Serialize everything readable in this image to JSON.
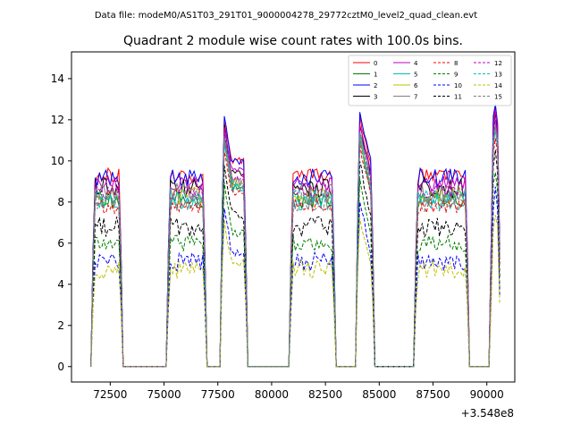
{
  "chart_data": {
    "type": "line",
    "suptitle": "Data file: modeM0/AS1T03_291T01_9000004278_29772cztM0_level2_quad_clean.evt",
    "title": "Quadrant 2 module wise count rates with 100.0s bins.",
    "xlabel": "",
    "ylabel": "",
    "x_offset_label": "+3.548e8",
    "xlim": [
      70700,
      91300
    ],
    "ylim": [
      -0.75,
      15.3
    ],
    "x_ticks": [
      72500,
      75000,
      77500,
      80000,
      82500,
      85000,
      87500,
      90000
    ],
    "x_tick_labels": [
      "72500",
      "75000",
      "77500",
      "80000",
      "82500",
      "85000",
      "87500",
      "90000"
    ],
    "y_ticks": [
      0,
      2,
      4,
      6,
      8,
      10,
      12,
      14
    ],
    "y_tick_labels": [
      "0",
      "2",
      "4",
      "6",
      "8",
      "10",
      "12",
      "14"
    ],
    "legend_position": "top-right",
    "bin_seconds": 100,
    "segments": [
      {
        "start": 71700,
        "end": 73000,
        "spike": false
      },
      {
        "start": 75200,
        "end": 76900,
        "spike": false
      },
      {
        "start": 77700,
        "end": 78800,
        "spike": true
      },
      {
        "start": 80900,
        "end": 82900,
        "spike": false
      },
      {
        "start": 84000,
        "end": 84700,
        "spike": true
      },
      {
        "start": 86700,
        "end": 89100,
        "spike": false
      },
      {
        "start": 90200,
        "end": 90600,
        "spike": true
      }
    ],
    "series": [
      {
        "name": "0",
        "color": "#ff0000",
        "dashed": false,
        "level": 9.3,
        "spike": 12.5
      },
      {
        "name": "1",
        "color": "#008000",
        "dashed": false,
        "level": 8.1,
        "spike": 11.6
      },
      {
        "name": "2",
        "color": "#0000ff",
        "dashed": false,
        "level": 9.2,
        "spike": 12.8
      },
      {
        "name": "3",
        "color": "#000000",
        "dashed": false,
        "level": 8.7,
        "spike": 12.2
      },
      {
        "name": "4",
        "color": "#bf00bf",
        "dashed": false,
        "level": 8.9,
        "spike": 12.4
      },
      {
        "name": "5",
        "color": "#00bfbf",
        "dashed": false,
        "level": 8.0,
        "spike": 11.5
      },
      {
        "name": "6",
        "color": "#bfbf00",
        "dashed": false,
        "level": 8.3,
        "spike": 11.8
      },
      {
        "name": "7",
        "color": "#808080",
        "dashed": false,
        "level": 8.4,
        "spike": 11.9
      },
      {
        "name": "8",
        "color": "#ff0000",
        "dashed": true,
        "level": 7.8,
        "spike": 11.2
      },
      {
        "name": "9",
        "color": "#008000",
        "dashed": true,
        "level": 6.0,
        "spike": 9.6
      },
      {
        "name": "10",
        "color": "#0000ff",
        "dashed": true,
        "level": 5.1,
        "spike": 8.6
      },
      {
        "name": "11",
        "color": "#000000",
        "dashed": true,
        "level": 6.8,
        "spike": 10.4
      },
      {
        "name": "12",
        "color": "#bf00bf",
        "dashed": true,
        "level": 8.5,
        "spike": 12.0
      },
      {
        "name": "13",
        "color": "#00bfbf",
        "dashed": true,
        "level": 8.2,
        "spike": 11.8
      },
      {
        "name": "14",
        "color": "#bfbf00",
        "dashed": true,
        "level": 4.7,
        "spike": 7.5
      },
      {
        "name": "15",
        "color": "#808080",
        "dashed": true,
        "level": 8.0,
        "spike": 11.6
      }
    ]
  }
}
